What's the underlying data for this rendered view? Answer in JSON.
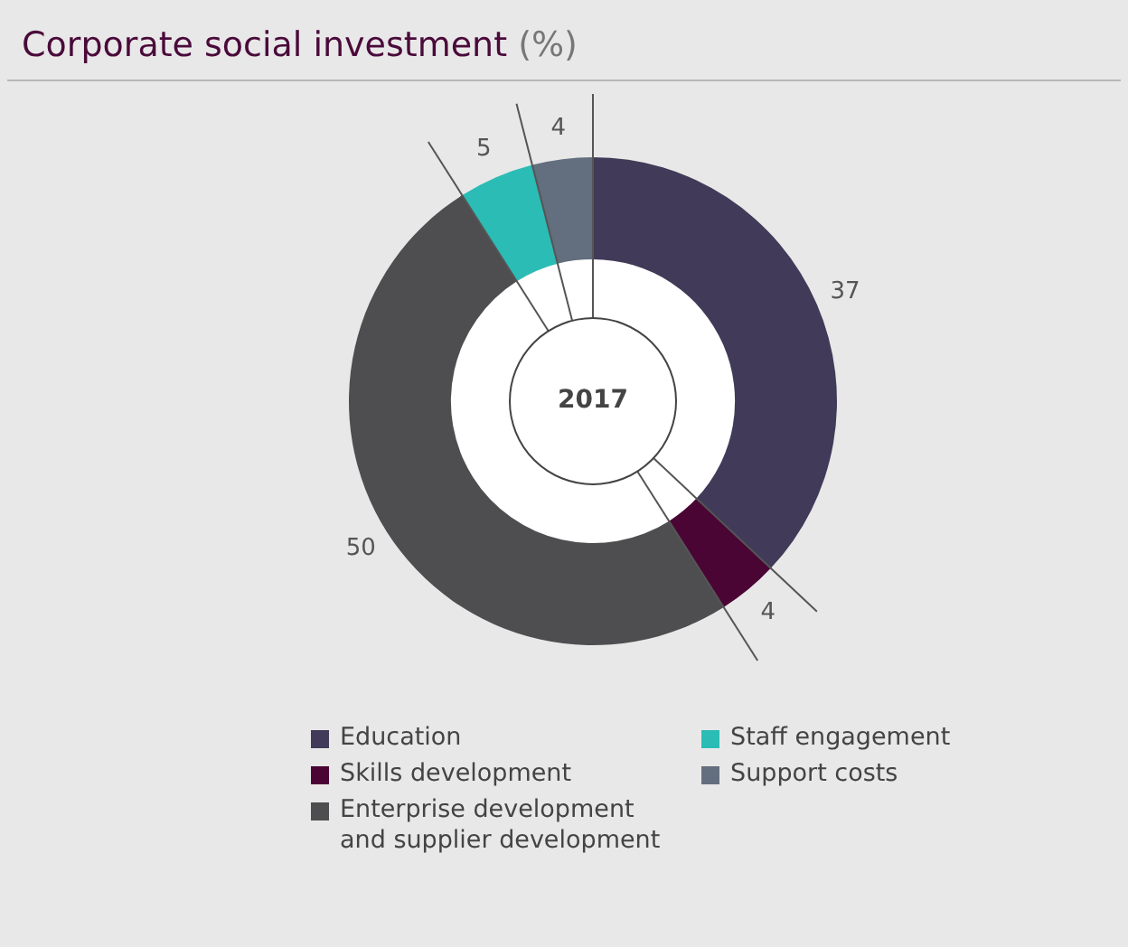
{
  "chart_data": {
    "type": "donut",
    "title": "Corporate social investment",
    "subtitle": "(%)",
    "categories": [
      "Education",
      "Skills development",
      "Enterprise development and supplier development",
      "Staff engagement",
      "Support costs"
    ],
    "values": [
      37,
      4,
      50,
      5,
      4
    ],
    "colors": [
      "#413a58",
      "#4a0535",
      "#4e4e50",
      "#2bbcb5",
      "#636e7e"
    ],
    "data_labels": true,
    "legend": "bottom",
    "annotations": [
      "2017"
    ]
  }
}
